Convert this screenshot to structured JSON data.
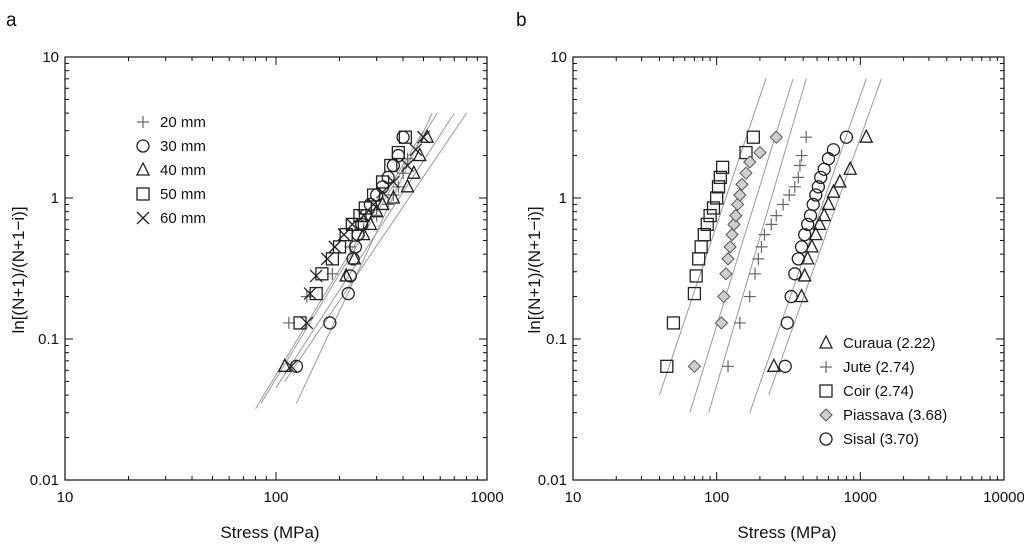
{
  "chart_data": [
    {
      "type": "scatter",
      "panel_label": "a",
      "xlabel": "Stress (MPa)",
      "ylabel": "ln[(N+1)/(N+1−i)]",
      "xscale": "log",
      "yscale": "log",
      "xlim": [
        10,
        1000
      ],
      "ylim": [
        0.01,
        10
      ],
      "x_ticks": [
        "10",
        "100",
        "1000"
      ],
      "y_ticks": [
        "0.01",
        "0.1",
        "1",
        "10"
      ],
      "legend_position": "top-left",
      "series": [
        {
          "name": "20 mm",
          "marker": "plus",
          "x": [
            115,
            140,
            185,
            225,
            260,
            300,
            340,
            360,
            380,
            400,
            420
          ],
          "y": [
            0.13,
            0.2,
            0.29,
            0.45,
            0.6,
            0.75,
            0.9,
            1.05,
            1.2,
            1.5,
            1.9
          ]
        },
        {
          "name": "30 mm",
          "marker": "circle",
          "x": [
            125,
            180,
            220,
            225,
            232,
            238,
            245,
            255,
            265,
            280,
            300,
            320,
            340,
            360,
            380,
            400
          ],
          "y": [
            0.064,
            0.13,
            0.21,
            0.28,
            0.37,
            0.45,
            0.55,
            0.65,
            0.75,
            0.9,
            1.05,
            1.2,
            1.4,
            1.7,
            2.0,
            2.7
          ]
        },
        {
          "name": "40 mm",
          "marker": "triangle",
          "x": [
            110,
            215,
            235,
            260,
            280,
            300,
            320,
            360,
            420,
            450,
            480,
            520
          ],
          "y": [
            0.064,
            0.28,
            0.37,
            0.55,
            0.65,
            0.8,
            0.9,
            1.0,
            1.2,
            1.5,
            2.0,
            2.7
          ]
        },
        {
          "name": "50 mm",
          "marker": "square",
          "x": [
            130,
            155,
            165,
            185,
            200,
            215,
            230,
            250,
            265,
            290,
            320,
            350,
            380,
            410
          ],
          "y": [
            0.13,
            0.21,
            0.29,
            0.37,
            0.45,
            0.55,
            0.65,
            0.75,
            0.85,
            1.05,
            1.3,
            1.7,
            2.1,
            2.7
          ]
        },
        {
          "name": "60 mm",
          "marker": "x",
          "x": [
            118,
            140,
            145,
            155,
            175,
            190,
            210,
            230,
            260,
            290,
            320,
            360,
            420,
            460,
            500
          ],
          "y": [
            0.064,
            0.13,
            0.21,
            0.28,
            0.37,
            0.45,
            0.55,
            0.65,
            0.75,
            0.9,
            1.1,
            1.3,
            1.7,
            2.2,
            2.7
          ]
        }
      ],
      "fit_lines": [
        {
          "x": [
            80,
            500
          ],
          "y": [
            0.032,
            3.0
          ]
        },
        {
          "x": [
            85,
            580
          ],
          "y": [
            0.035,
            4.0
          ]
        },
        {
          "x": [
            100,
            700
          ],
          "y": [
            0.045,
            4.0
          ]
        },
        {
          "x": [
            110,
            800
          ],
          "y": [
            0.05,
            4.0
          ]
        },
        {
          "x": [
            125,
            550
          ],
          "y": [
            0.035,
            4.0
          ]
        }
      ]
    },
    {
      "type": "scatter",
      "panel_label": "b",
      "xlabel": "Stress (MPa)",
      "ylabel": "ln[(N+1)/(N+1−i)]",
      "xscale": "log",
      "yscale": "log",
      "xlim": [
        10,
        10000
      ],
      "ylim": [
        0.01,
        10
      ],
      "x_ticks": [
        "10",
        "100",
        "1000",
        "10000"
      ],
      "y_ticks": [
        "0.01",
        "0.1",
        "1",
        "10"
      ],
      "legend_position": "bottom-right",
      "series": [
        {
          "name": "Curaua (2.22)",
          "marker": "triangle",
          "x": [
            250,
            390,
            410,
            430,
            460,
            490,
            520,
            560,
            600,
            650,
            720,
            850,
            1100
          ],
          "y": [
            0.064,
            0.2,
            0.28,
            0.37,
            0.45,
            0.55,
            0.65,
            0.75,
            0.9,
            1.1,
            1.3,
            1.6,
            2.7
          ]
        },
        {
          "name": "Jute (2.74)",
          "marker": "plus",
          "x": [
            120,
            145,
            170,
            185,
            195,
            205,
            215,
            240,
            260,
            290,
            320,
            350,
            370,
            380,
            390,
            420
          ],
          "y": [
            0.064,
            0.13,
            0.2,
            0.29,
            0.37,
            0.45,
            0.55,
            0.65,
            0.75,
            0.9,
            1.05,
            1.2,
            1.4,
            1.7,
            2.0,
            2.7
          ]
        },
        {
          "name": "Coir (2.74)",
          "marker": "square",
          "x": [
            45,
            50,
            70,
            72,
            75,
            78,
            82,
            86,
            90,
            95,
            100,
            103,
            106,
            110,
            160,
            180
          ],
          "y": [
            0.064,
            0.13,
            0.21,
            0.28,
            0.37,
            0.45,
            0.55,
            0.65,
            0.75,
            0.85,
            1.0,
            1.2,
            1.4,
            1.65,
            2.1,
            2.7
          ]
        },
        {
          "name": "Piassava (3.68)",
          "marker": "diamond",
          "x": [
            70,
            108,
            112,
            116,
            120,
            124,
            128,
            132,
            136,
            140,
            145,
            150,
            160,
            170,
            200,
            260
          ],
          "y": [
            0.064,
            0.13,
            0.2,
            0.29,
            0.37,
            0.45,
            0.55,
            0.65,
            0.75,
            0.9,
            1.05,
            1.25,
            1.5,
            1.8,
            2.1,
            2.7
          ]
        },
        {
          "name": "Sisal (3.70)",
          "marker": "circle",
          "x": [
            300,
            310,
            330,
            350,
            370,
            390,
            410,
            430,
            450,
            470,
            490,
            510,
            530,
            560,
            600,
            650,
            800
          ],
          "y": [
            0.064,
            0.13,
            0.2,
            0.29,
            0.37,
            0.45,
            0.55,
            0.65,
            0.75,
            0.9,
            1.05,
            1.2,
            1.4,
            1.6,
            1.9,
            2.2,
            2.7
          ]
        }
      ],
      "fit_lines": [
        {
          "x": [
            40,
            220
          ],
          "y": [
            0.04,
            7.0
          ]
        },
        {
          "x": [
            65,
            340
          ],
          "y": [
            0.03,
            7.0
          ]
        },
        {
          "x": [
            88,
            420
          ],
          "y": [
            0.03,
            7.0
          ]
        },
        {
          "x": [
            170,
            1100
          ],
          "y": [
            0.03,
            7.0
          ]
        },
        {
          "x": [
            230,
            1400
          ],
          "y": [
            0.04,
            7.0
          ]
        }
      ]
    }
  ]
}
